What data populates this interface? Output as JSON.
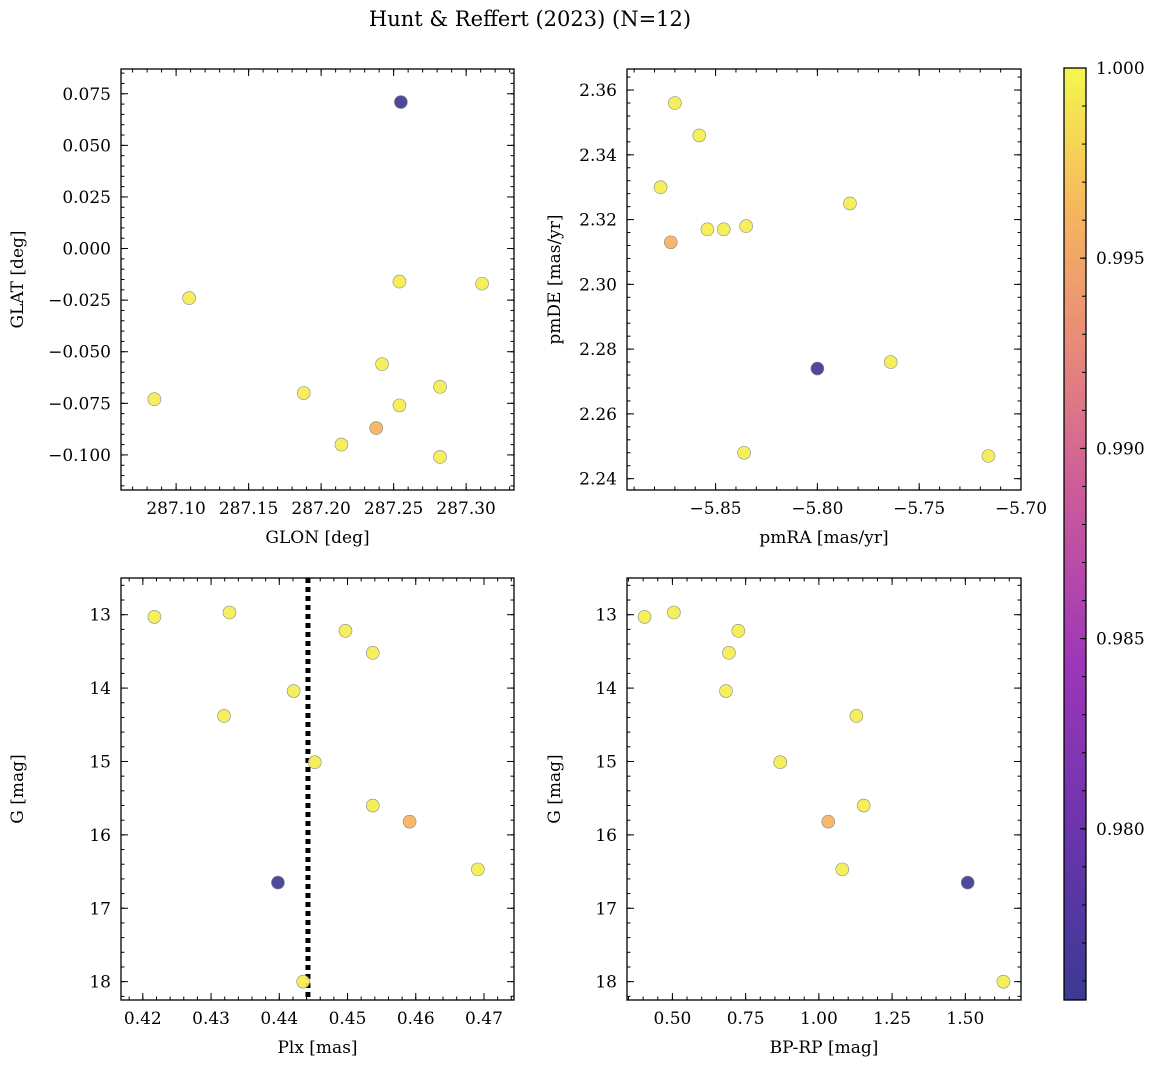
{
  "figure": {
    "title": "Hunt & Reffert (2023) (N=12)"
  },
  "colorbar": {
    "colormap": "plasma",
    "range": [
      0.9755,
      1.0
    ],
    "ticks": [
      0.98,
      0.985,
      0.99,
      0.995,
      1.0
    ],
    "tick_labels": [
      "0.980",
      "0.985",
      "0.990",
      "0.995",
      "1.000"
    ]
  },
  "chart_data": [
    {
      "type": "scatter",
      "id": "glon-glat",
      "xlabel": "GLON [deg]",
      "ylabel": "GLAT [deg]",
      "xlim": [
        287.062,
        287.333
      ],
      "ylim": [
        -0.117,
        0.087
      ],
      "x_ticks": [
        287.1,
        287.15,
        287.2,
        287.25,
        287.3
      ],
      "x_tick_labels": [
        "287.10",
        "287.15",
        "287.20",
        "287.25",
        "287.30"
      ],
      "y_ticks": [
        -0.1,
        -0.075,
        -0.05,
        -0.025,
        0.0,
        0.025,
        0.05,
        0.075
      ],
      "y_tick_labels": [
        "−0.100",
        "−0.075",
        "−0.050",
        "−0.025",
        "0.000",
        "0.025",
        "0.050",
        "0.075"
      ],
      "y_inverted": false,
      "points": [
        {
          "x": 287.255,
          "y": 0.071,
          "c": 0.976
        },
        {
          "x": 287.238,
          "y": -0.087,
          "c": 0.996
        },
        {
          "x": 287.085,
          "y": -0.073,
          "c": 0.9995
        },
        {
          "x": 287.109,
          "y": -0.024,
          "c": 0.9995
        },
        {
          "x": 287.188,
          "y": -0.07,
          "c": 0.9995
        },
        {
          "x": 287.214,
          "y": -0.095,
          "c": 0.9995
        },
        {
          "x": 287.242,
          "y": -0.056,
          "c": 0.9995
        },
        {
          "x": 287.254,
          "y": -0.016,
          "c": 0.9995
        },
        {
          "x": 287.254,
          "y": -0.076,
          "c": 0.9995
        },
        {
          "x": 287.282,
          "y": -0.067,
          "c": 0.9995
        },
        {
          "x": 287.282,
          "y": -0.101,
          "c": 0.9995
        },
        {
          "x": 287.311,
          "y": -0.017,
          "c": 0.9995
        }
      ]
    },
    {
      "type": "scatter",
      "id": "pmra-pmde",
      "xlabel": "pmRA [mas/yr]",
      "ylabel": "pmDE [mas/yr]",
      "xlim": [
        -5.8935,
        -5.7
      ],
      "ylim": [
        2.2365,
        2.3665
      ],
      "x_ticks": [
        -5.85,
        -5.8,
        -5.75,
        -5.7
      ],
      "x_tick_labels": [
        "−5.85",
        "−5.80",
        "−5.75",
        "−5.70"
      ],
      "y_ticks": [
        2.24,
        2.26,
        2.28,
        2.3,
        2.32,
        2.34,
        2.36
      ],
      "y_tick_labels": [
        "2.24",
        "2.26",
        "2.28",
        "2.30",
        "2.32",
        "2.34",
        "2.36"
      ],
      "y_inverted": false,
      "points": [
        {
          "x": -5.8,
          "y": 2.274,
          "c": 0.976
        },
        {
          "x": -5.872,
          "y": 2.313,
          "c": 0.996
        },
        {
          "x": -5.87,
          "y": 2.356,
          "c": 0.9995
        },
        {
          "x": -5.858,
          "y": 2.346,
          "c": 0.9995
        },
        {
          "x": -5.877,
          "y": 2.33,
          "c": 0.9995
        },
        {
          "x": -5.854,
          "y": 2.317,
          "c": 0.9995
        },
        {
          "x": -5.846,
          "y": 2.317,
          "c": 0.9995
        },
        {
          "x": -5.835,
          "y": 2.318,
          "c": 0.9995
        },
        {
          "x": -5.784,
          "y": 2.325,
          "c": 0.9995
        },
        {
          "x": -5.764,
          "y": 2.276,
          "c": 0.9995
        },
        {
          "x": -5.836,
          "y": 2.248,
          "c": 0.9995
        },
        {
          "x": -5.716,
          "y": 2.247,
          "c": 0.9995
        }
      ]
    },
    {
      "type": "scatter",
      "id": "plx-g",
      "xlabel": "Plx [mas]",
      "ylabel": "G [mag]",
      "xlim": [
        0.4168,
        0.4744
      ],
      "ylim": [
        18.25,
        12.5
      ],
      "x_ticks": [
        0.42,
        0.43,
        0.44,
        0.45,
        0.46,
        0.47
      ],
      "x_tick_labels": [
        "0.42",
        "0.43",
        "0.44",
        "0.45",
        "0.46",
        "0.47"
      ],
      "y_ticks": [
        13,
        14,
        15,
        16,
        17,
        18
      ],
      "y_tick_labels": [
        "13",
        "14",
        "15",
        "16",
        "17",
        "18"
      ],
      "y_inverted": true,
      "vline": {
        "x": 0.4442,
        "style": "dotted"
      },
      "points": [
        {
          "x": 0.4398,
          "y": 16.65,
          "c": 0.976
        },
        {
          "x": 0.4591,
          "y": 15.82,
          "c": 0.996
        },
        {
          "x": 0.4217,
          "y": 13.03,
          "c": 0.9995
        },
        {
          "x": 0.4327,
          "y": 12.97,
          "c": 0.9995
        },
        {
          "x": 0.4497,
          "y": 13.22,
          "c": 0.9995
        },
        {
          "x": 0.4537,
          "y": 13.52,
          "c": 0.9995
        },
        {
          "x": 0.4421,
          "y": 14.04,
          "c": 0.9995
        },
        {
          "x": 0.4319,
          "y": 14.38,
          "c": 0.9995
        },
        {
          "x": 0.4452,
          "y": 15.01,
          "c": 0.9995
        },
        {
          "x": 0.4537,
          "y": 15.6,
          "c": 0.9995
        },
        {
          "x": 0.4691,
          "y": 16.47,
          "c": 0.9995
        },
        {
          "x": 0.4435,
          "y": 18.0,
          "c": 0.9995
        }
      ]
    },
    {
      "type": "scatter",
      "id": "bprp-g",
      "xlabel": "BP-RP [mag]",
      "ylabel": "G [mag]",
      "xlim": [
        0.345,
        1.69
      ],
      "ylim": [
        18.25,
        12.5
      ],
      "x_ticks": [
        0.5,
        0.75,
        1.0,
        1.25,
        1.5
      ],
      "x_tick_labels": [
        "0.50",
        "0.75",
        "1.00",
        "1.25",
        "1.50"
      ],
      "y_ticks": [
        13,
        14,
        15,
        16,
        17,
        18
      ],
      "y_tick_labels": [
        "13",
        "14",
        "15",
        "16",
        "17",
        "18"
      ],
      "y_inverted": true,
      "points": [
        {
          "x": 1.508,
          "y": 16.65,
          "c": 0.976
        },
        {
          "x": 1.032,
          "y": 15.82,
          "c": 0.996
        },
        {
          "x": 0.405,
          "y": 13.03,
          "c": 0.9995
        },
        {
          "x": 0.505,
          "y": 12.97,
          "c": 0.9995
        },
        {
          "x": 0.725,
          "y": 13.22,
          "c": 0.9995
        },
        {
          "x": 0.693,
          "y": 13.52,
          "c": 0.9995
        },
        {
          "x": 0.683,
          "y": 14.04,
          "c": 0.9995
        },
        {
          "x": 1.128,
          "y": 14.38,
          "c": 0.9995
        },
        {
          "x": 0.868,
          "y": 15.01,
          "c": 0.9995
        },
        {
          "x": 1.153,
          "y": 15.6,
          "c": 0.9995
        },
        {
          "x": 1.08,
          "y": 16.47,
          "c": 0.9995
        },
        {
          "x": 1.63,
          "y": 18.0,
          "c": 0.9995
        }
      ]
    }
  ]
}
